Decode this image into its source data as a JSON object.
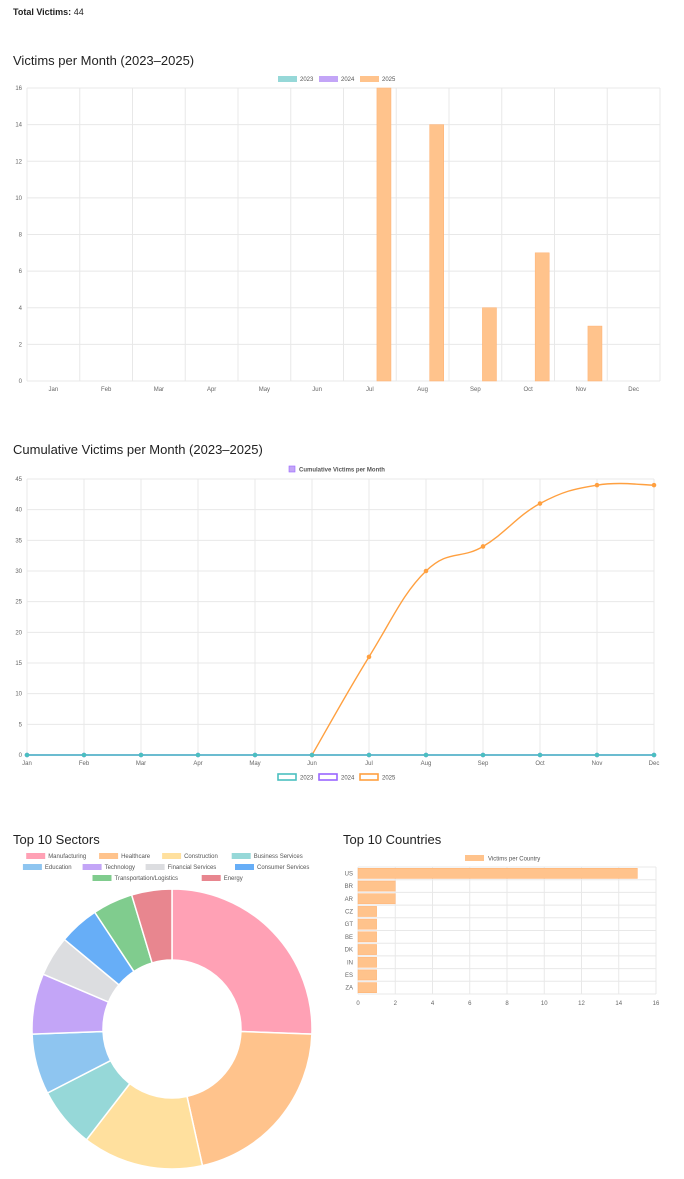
{
  "summary": {
    "label": "Total Victims:",
    "value": "44"
  },
  "chart_data": [
    {
      "id": "monthly",
      "type": "bar",
      "title": "Victims per Month (2023–2025)",
      "categories": [
        "Jan",
        "Feb",
        "Mar",
        "Apr",
        "May",
        "Jun",
        "Jul",
        "Aug",
        "Sep",
        "Oct",
        "Nov",
        "Dec"
      ],
      "series": [
        {
          "name": "2023",
          "color": "#96d8d8",
          "values": [
            0,
            0,
            0,
            0,
            0,
            0,
            0,
            0,
            0,
            0,
            0,
            0
          ]
        },
        {
          "name": "2024",
          "color": "#c3a5f7",
          "values": [
            0,
            0,
            0,
            0,
            0,
            0,
            0,
            0,
            0,
            0,
            0,
            0
          ]
        },
        {
          "name": "2025",
          "color": "#ffc38c",
          "values": [
            0,
            0,
            0,
            0,
            0,
            0,
            16,
            14,
            4,
            7,
            3,
            0
          ]
        }
      ],
      "ylim": [
        0,
        16
      ],
      "yticks": [
        0,
        2,
        4,
        6,
        8,
        10,
        12,
        14,
        16
      ],
      "grid": true,
      "legend": "top-center"
    },
    {
      "id": "cumulative",
      "type": "line",
      "title": "Cumulative Victims per Month (2023–2025)",
      "top_legend": "Cumulative Victims per Month",
      "categories": [
        "Jan",
        "Feb",
        "Mar",
        "Apr",
        "May",
        "Jun",
        "Jul",
        "Aug",
        "Sep",
        "Oct",
        "Nov",
        "Dec"
      ],
      "series": [
        {
          "name": "2023",
          "color": "#4bc0c0",
          "values": [
            0,
            0,
            0,
            0,
            0,
            0,
            0,
            0,
            0,
            0,
            0,
            0
          ]
        },
        {
          "name": "2024",
          "color": "#9966ff",
          "values": [
            0,
            0,
            0,
            0,
            0,
            0,
            0,
            0,
            0,
            0,
            0,
            0
          ]
        },
        {
          "name": "2025",
          "color": "#ffa040",
          "values": [
            null,
            null,
            null,
            null,
            null,
            0,
            16,
            30,
            34,
            41,
            44,
            44
          ]
        }
      ],
      "ylim": [
        0,
        45
      ],
      "yticks": [
        0,
        5,
        10,
        15,
        20,
        25,
        30,
        35,
        40,
        45
      ],
      "grid": true,
      "legend": "bottom-center"
    },
    {
      "id": "sectors",
      "type": "pie",
      "title": "Top 10 Sectors",
      "labels": [
        "Manufacturing",
        "Healthcare",
        "Construction",
        "Business Services",
        "Education",
        "Technology",
        "Financial Services",
        "Consumer Services",
        "Transportation/Logistics",
        "Energy"
      ],
      "values": [
        11,
        9,
        6,
        3,
        3,
        3,
        2,
        2,
        2,
        2
      ],
      "colors": [
        "#ffa1b5",
        "#ffc38c",
        "#ffe09e",
        "#96d8d8",
        "#8ec5f0",
        "#c3a5f7",
        "#dcdde0",
        "#67aef7",
        "#80cc8e",
        "#e8868f"
      ],
      "legend": "top-center"
    },
    {
      "id": "countries",
      "type": "bar",
      "orientation": "horizontal",
      "title": "Top 10 Countries",
      "series_name": "Victims per Country",
      "color": "#ffc38c",
      "categories": [
        "US",
        "BR",
        "AR",
        "CZ",
        "GT",
        "BE",
        "DK",
        "IN",
        "ES",
        "ZA"
      ],
      "values": [
        15,
        2,
        2,
        1,
        1,
        1,
        1,
        1,
        1,
        1
      ],
      "xlim": [
        0,
        16
      ],
      "xticks": [
        0,
        2,
        4,
        6,
        8,
        10,
        12,
        14,
        16
      ],
      "grid": true,
      "legend": "top-center"
    }
  ]
}
